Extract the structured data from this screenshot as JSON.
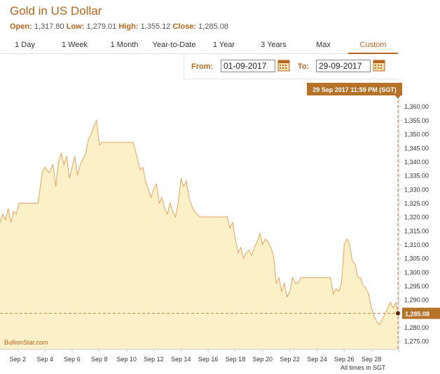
{
  "header": {
    "title": "Gold in US Dollar",
    "open_label": "Open:",
    "open_value": "1,317.80",
    "low_label": "Low:",
    "low_value": "1,279.01",
    "high_label": "High:",
    "high_value": "1,355.12",
    "close_label": "Close:",
    "close_value": "1,285.08"
  },
  "tabs": [
    {
      "label": "1 Day"
    },
    {
      "label": "1 Week"
    },
    {
      "label": "1 Month"
    },
    {
      "label": "Year-to-Date"
    },
    {
      "label": "1 Year"
    },
    {
      "label": "3 Years"
    },
    {
      "label": "Max"
    },
    {
      "label": "Custom"
    }
  ],
  "active_tab": "Custom",
  "range": {
    "from_label": "From:",
    "from_value": "01-09-2017",
    "to_label": "To:",
    "to_value": "29-09-2017"
  },
  "colors": {
    "accent": "#b5651d",
    "line": "#e8a35c",
    "fill": "#fbf0c8",
    "tooltip": "#b5732a"
  },
  "chart_data": {
    "type": "area",
    "title": "",
    "xlabel": "",
    "ylabel": "",
    "ylim": [
      1272,
      1364
    ],
    "xlim": [
      0.7,
      29.95
    ],
    "yticks": [
      1275,
      1280,
      1285,
      1290,
      1295,
      1300,
      1305,
      1310,
      1315,
      1320,
      1325,
      1330,
      1335,
      1340,
      1345,
      1350,
      1355,
      1360
    ],
    "ytick_labels": [
      "1,275.00",
      "1,280.00",
      "1,285.00",
      "1,290.00",
      "1,295.00",
      "1,300.00",
      "1,305.00",
      "1,310.00",
      "1,315.00",
      "1,320.00",
      "1,325.00",
      "1,330.00",
      "1,335.00",
      "1,340.00",
      "1,345.00",
      "1,350.00",
      "1,355.00",
      "1,360.00"
    ],
    "xticks": [
      {
        "x": 2,
        "label": "Sep 2"
      },
      {
        "x": 4,
        "label": "Sep 4"
      },
      {
        "x": 6,
        "label": "Sep 6"
      },
      {
        "x": 8,
        "label": "Sep 8"
      },
      {
        "x": 10,
        "label": "Sep 10"
      },
      {
        "x": 12,
        "label": "Sep 12"
      },
      {
        "x": 14,
        "label": "Sep 14"
      },
      {
        "x": 16,
        "label": "Sep 16"
      },
      {
        "x": 18,
        "label": "Sep 18"
      },
      {
        "x": 20,
        "label": "Sep 20"
      },
      {
        "x": 22,
        "label": "Sep 22"
      },
      {
        "x": 24,
        "label": "Sep 24"
      },
      {
        "x": 26,
        "label": "Sep 26"
      },
      {
        "x": 28,
        "label": "Sep 28"
      }
    ],
    "series": [
      {
        "x": [
          0.7,
          0.9,
          1.1,
          1.3,
          1.5,
          1.7,
          1.9,
          2.1,
          2.3,
          2.6,
          2.9,
          3.2,
          3.5,
          3.8,
          4.0,
          4.3,
          4.6,
          4.8,
          5.0,
          5.2,
          5.4,
          5.6,
          5.8,
          6.0,
          6.2,
          6.4,
          6.6,
          6.8,
          7.0,
          7.2,
          7.4,
          7.6,
          7.8,
          8.0,
          8.2,
          8.4,
          8.6,
          8.8,
          9.0,
          9.2,
          9.5,
          10.0,
          10.5,
          11.0,
          11.2,
          11.4,
          11.6,
          11.8,
          12.0,
          12.2,
          12.4,
          12.6,
          12.8,
          13.0,
          13.2,
          13.4,
          13.6,
          13.8,
          14.0,
          14.2,
          14.4,
          14.6,
          14.8,
          15.0,
          15.2,
          15.4,
          15.6,
          15.8,
          16.0,
          16.5,
          17.0,
          17.4,
          17.6,
          17.8,
          18.0,
          18.2,
          18.4,
          18.6,
          18.8,
          19.0,
          19.2,
          19.4,
          19.6,
          19.8,
          20.0,
          20.2,
          20.4,
          20.6,
          20.8,
          21.0,
          21.2,
          21.4,
          21.6,
          21.8,
          22.0,
          22.2,
          22.4,
          22.6,
          22.8,
          23.0,
          23.5,
          24.0,
          24.5,
          25.0,
          25.2,
          25.4,
          25.6,
          25.8,
          26.0,
          26.2,
          26.4,
          26.6,
          26.8,
          27.0,
          27.2,
          27.4,
          27.6,
          27.8,
          28.0,
          28.2,
          28.4,
          28.6,
          28.8,
          29.0,
          29.2,
          29.4,
          29.6,
          29.8,
          29.95
        ],
        "y": [
          1318,
          1321,
          1319,
          1323,
          1318,
          1322,
          1321,
          1325,
          1325,
          1325,
          1325,
          1325,
          1325,
          1336,
          1338,
          1336,
          1339,
          1331,
          1340,
          1343,
          1339,
          1342,
          1334,
          1338,
          1342,
          1335,
          1339,
          1341,
          1343,
          1348,
          1350,
          1353,
          1355,
          1346,
          1347,
          1347,
          1347,
          1347,
          1347,
          1347,
          1347,
          1347,
          1347,
          1337,
          1338,
          1333,
          1330,
          1327,
          1330,
          1332,
          1325,
          1327,
          1323,
          1321,
          1325,
          1322,
          1320,
          1325,
          1334,
          1331,
          1333,
          1327,
          1324,
          1322,
          1321,
          1320,
          1320,
          1320,
          1320,
          1320,
          1320,
          1320,
          1316,
          1318,
          1312,
          1307,
          1309,
          1305,
          1307,
          1308,
          1306,
          1309,
          1311,
          1314,
          1310,
          1312,
          1311,
          1309,
          1306,
          1296,
          1298,
          1293,
          1296,
          1291,
          1293,
          1298,
          1296,
          1296,
          1298,
          1298,
          1298,
          1298,
          1298,
          1298,
          1292,
          1294,
          1293,
          1296,
          1310,
          1312,
          1310,
          1304,
          1303,
          1298,
          1298,
          1295,
          1294,
          1292,
          1287,
          1284,
          1282,
          1281,
          1283,
          1285,
          1287,
          1289,
          1287,
          1289,
          1285
        ]
      }
    ],
    "current_value": 1285.08,
    "current_label": "1,285.08",
    "tooltip": "29 Sep 2017 11:59 PM (SGT)",
    "watermark": "BullionStar.com",
    "footnote": "All times in SGT",
    "grid": false
  }
}
